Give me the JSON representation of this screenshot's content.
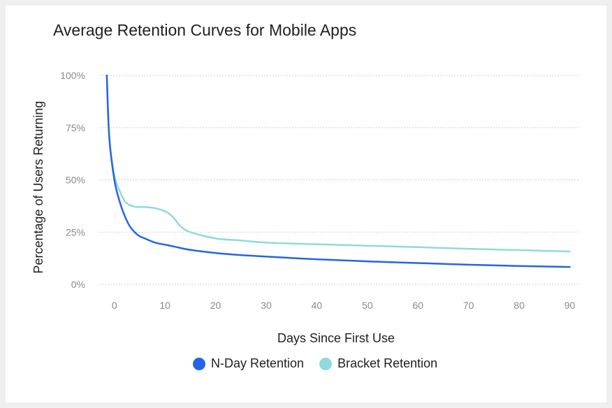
{
  "chart_data": {
    "type": "line",
    "title": "Average Retention Curves for Mobile Apps",
    "xlabel": "Days Since First Use",
    "ylabel": "Percentage of Users Returning",
    "xlim": [
      -3,
      92
    ],
    "ylim": [
      0,
      100
    ],
    "x_ticks": [
      0,
      10,
      20,
      30,
      40,
      50,
      60,
      70,
      80,
      90
    ],
    "y_ticks": [
      0,
      25,
      50,
      75,
      100
    ],
    "y_tick_labels": [
      "0%",
      "25%",
      "50%",
      "75%",
      "100%"
    ],
    "grid": "horizontal dashed",
    "legend_position": "bottom",
    "series": [
      {
        "name": "N-Day Retention",
        "color": "#2563eb",
        "x": [
          -1.5,
          -1,
          0,
          1,
          2,
          3,
          4,
          5,
          6,
          8,
          10,
          12,
          15,
          20,
          25,
          30,
          40,
          50,
          60,
          70,
          80,
          90
        ],
        "y": [
          100,
          70,
          50,
          40,
          33,
          28,
          25,
          23,
          22,
          20,
          19,
          18,
          16.5,
          15,
          14,
          13.3,
          12,
          11,
          10.2,
          9.4,
          8.8,
          8.3
        ]
      },
      {
        "name": "Bracket Retention",
        "color": "#8fd9df",
        "x": [
          -1.5,
          -1,
          0,
          1,
          2,
          3,
          4,
          5,
          6,
          8,
          10,
          11,
          12,
          13,
          15,
          20,
          25,
          30,
          40,
          50,
          60,
          70,
          80,
          90
        ],
        "y": [
          100,
          70,
          52,
          45,
          40,
          38,
          37.2,
          37,
          37,
          36.5,
          35,
          33.5,
          31,
          28,
          25,
          22,
          21,
          20,
          19.2,
          18.5,
          17.8,
          17,
          16.4,
          15.7
        ]
      }
    ]
  }
}
